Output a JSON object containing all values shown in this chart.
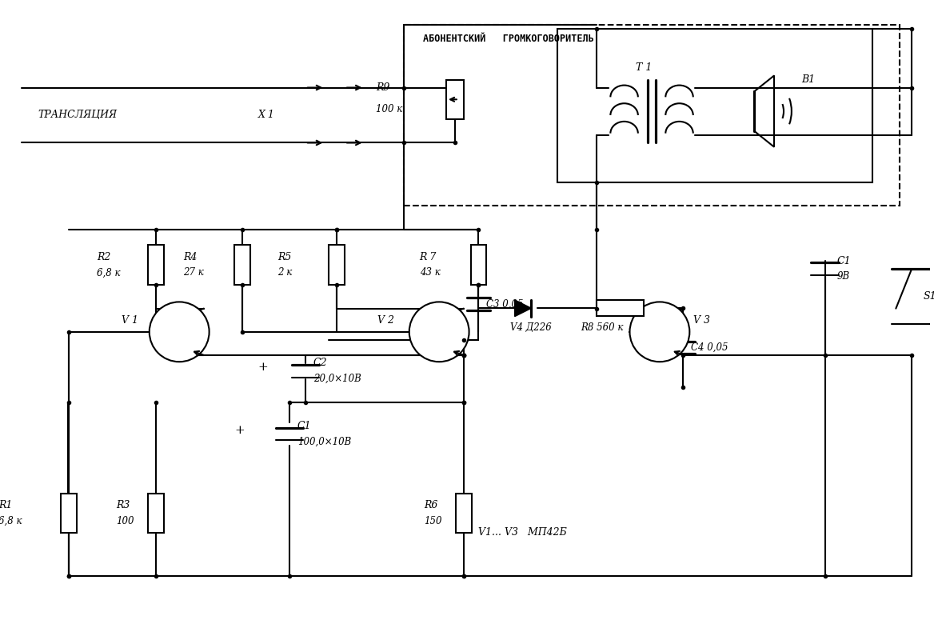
{
  "bg_color": "#ffffff",
  "line_color": "#000000",
  "fig_width": 11.73,
  "fig_height": 8.05,
  "dpi": 100,
  "labels": {
    "translyacia": "ТРАНСЛЯЦИЯ",
    "x1": "Х 1",
    "abonent": "АБОНЕНТСКИЙ   ГРОМКОГОВОРИТЕЛЬ",
    "r1_name": "R1",
    "r1_val": "6,8 к",
    "r2_name": "R2",
    "r2_val": "6,8 к",
    "r3_name": "R3",
    "r3_val": "100",
    "r4_name": "R4",
    "r4_val": "27 к",
    "r5_name": "R5",
    "r5_val": "2 к",
    "r6_name": "R6",
    "r6_val": "150",
    "r7_name": "R 7",
    "r7_val": "43 к",
    "r8_label": "R8 560 к",
    "r9_name": "R9",
    "r9_val": "100 к",
    "c1big_name": "C1",
    "c1big_val": "100,0×10В",
    "c2_name": "C2",
    "c2_val": "20,0×10В",
    "c3_label": "С3 0,05",
    "c4_label": "С4 0,05",
    "c1sm_name": "С1",
    "c1sm_val": "9В",
    "v1": "V 1",
    "v2": "V 2",
    "v3": "V 3",
    "v4": "V4 Д226",
    "v1v3": "V1... V3   МП42Б",
    "t1": "Т 1",
    "b1": "В1",
    "s1": "S1"
  }
}
